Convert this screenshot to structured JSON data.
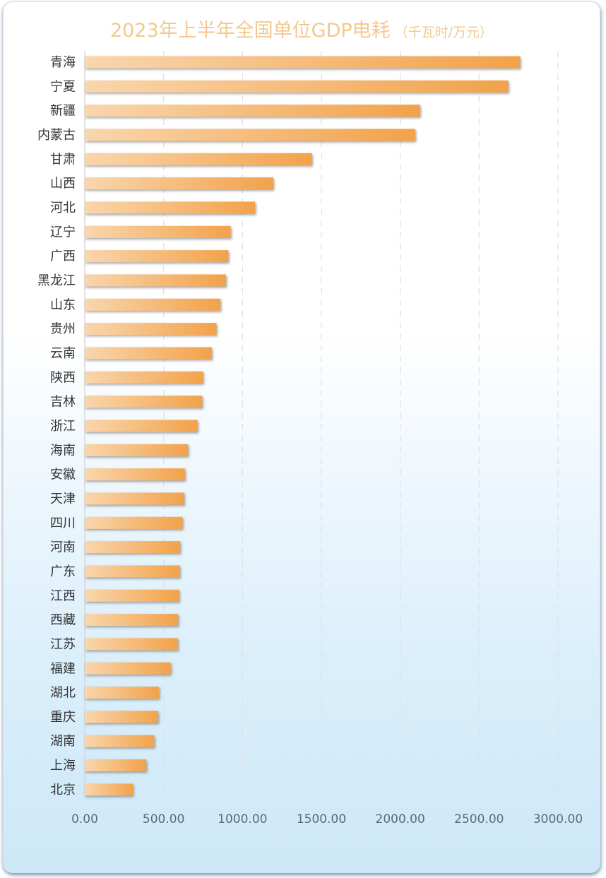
{
  "chart_data": {
    "type": "bar",
    "orientation": "horizontal",
    "title": "2023年上半年全国单位GDP电耗",
    "unit": "（千瓦时/万元）",
    "categories": [
      "青海",
      "宁夏",
      "新疆",
      "内蒙古",
      "甘肃",
      "山西",
      "河北",
      "辽宁",
      "广西",
      "黑龙江",
      "山东",
      "贵州",
      "云南",
      "陕西",
      "吉林",
      "浙江",
      "海南",
      "安徽",
      "天津",
      "四川",
      "河南",
      "广东",
      "江西",
      "西藏",
      "江苏",
      "福建",
      "湖北",
      "重庆",
      "湖南",
      "上海",
      "北京"
    ],
    "values": [
      2760,
      2685,
      2125,
      2095,
      1440,
      1195,
      1080,
      925,
      910,
      895,
      860,
      835,
      805,
      750,
      745,
      715,
      655,
      635,
      630,
      620,
      605,
      603,
      598,
      592,
      590,
      545,
      470,
      465,
      440,
      390,
      305
    ],
    "xlim": [
      0,
      3000
    ],
    "xticks": [
      "0.00",
      "500.00",
      "1000.00",
      "1500.00",
      "2000.00",
      "2500.00",
      "3000.00"
    ],
    "grid": "vertical-dashed",
    "colors": {
      "bar_start": "#f9d6ad",
      "bar_end": "#f2a24a",
      "title": "#f3c98f",
      "grid": "#e0e0e0",
      "axis": "#d0d0d0"
    }
  }
}
